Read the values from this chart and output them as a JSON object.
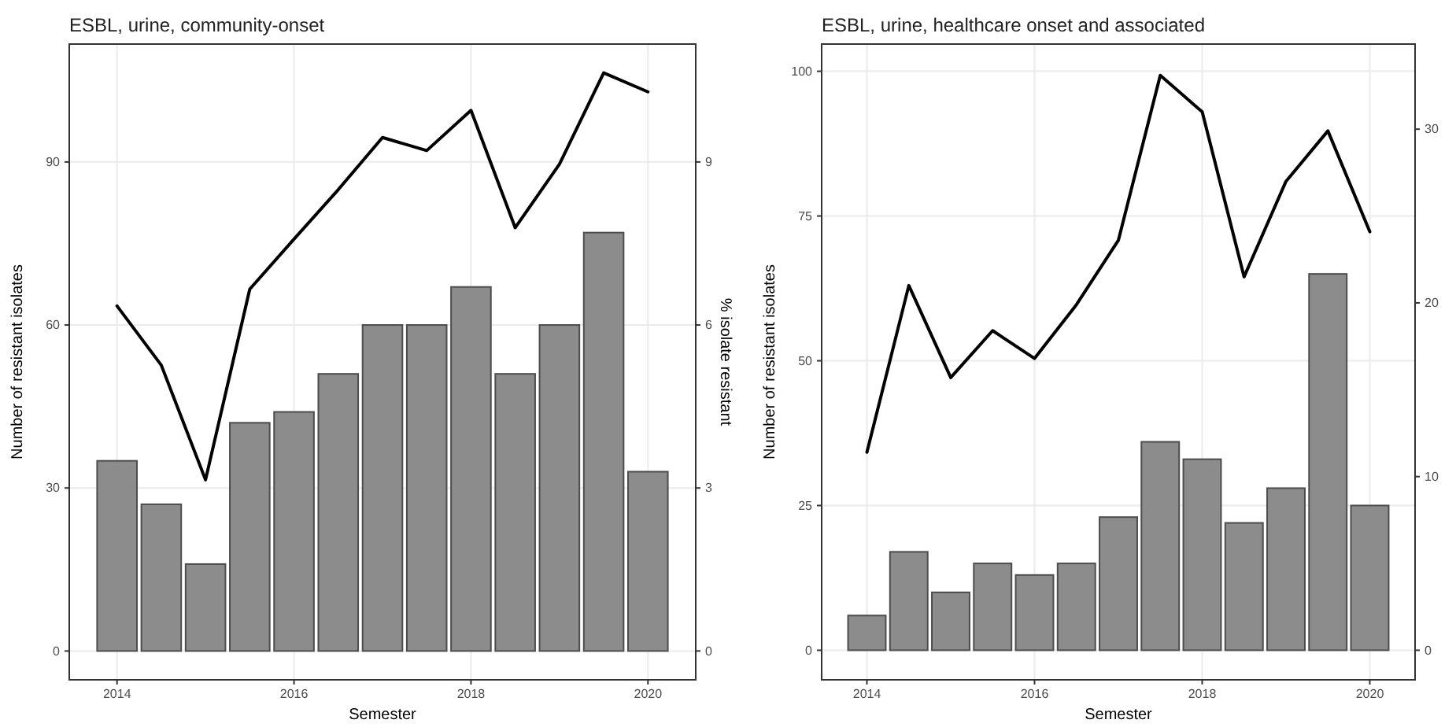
{
  "chart_data": [
    {
      "type": "bar",
      "title": "ESBL, urine, community-onset",
      "xlabel": "Semester",
      "ylabel": "Number of resistant isolates",
      "y2label": "% isolate resistant",
      "x": [
        2014,
        2014.5,
        2015,
        2015.5,
        2016,
        2016.5,
        2017,
        2017.5,
        2018,
        2018.5,
        2019,
        2019.5,
        2020
      ],
      "series": [
        {
          "color": "#8c8c8c",
          "values": [
            35,
            27,
            16,
            42,
            44,
            51,
            60,
            60,
            67,
            51,
            60,
            77,
            33
          ]
        },
        {
          "type": "line",
          "axis": "y2",
          "color": "#000000",
          "values": [
            6.35,
            5.26,
            3.15,
            6.66,
            7.58,
            8.49,
            9.45,
            9.21,
            9.95,
            7.79,
            8.96,
            10.64,
            10.29
          ]
        }
      ],
      "xlim": [
        2013.46,
        2020.54
      ],
      "xticks": [
        2014,
        2016,
        2018,
        2020
      ],
      "ylim": [
        -5.3,
        111.7
      ],
      "yticks": [
        0,
        30,
        60,
        90
      ],
      "y2lim": [
        -0.53,
        11.17
      ],
      "y2ticks": [
        0,
        3,
        6,
        9
      ],
      "grid": true
    },
    {
      "type": "bar",
      "title": "ESBL, urine, healthcare onset and associated",
      "xlabel": "Semester",
      "ylabel": "Number of resistant isolates",
      "x": [
        2014,
        2014.5,
        2015,
        2015.5,
        2016,
        2016.5,
        2017,
        2017.5,
        2018,
        2018.5,
        2019,
        2019.5,
        2020
      ],
      "series": [
        {
          "color": "#8c8c8c",
          "values": [
            6,
            17,
            10,
            15,
            13,
            15,
            23,
            36,
            33,
            22,
            28,
            65,
            25
          ]
        },
        {
          "type": "line",
          "axis": "y2",
          "color": "#000000",
          "values": [
            11.4,
            21.0,
            15.7,
            18.4,
            16.8,
            19.9,
            23.6,
            33.1,
            31.0,
            21.5,
            27.0,
            29.9,
            24.1
          ]
        }
      ],
      "xlim": [
        2013.46,
        2020.54
      ],
      "xticks": [
        2014,
        2016,
        2018,
        2020
      ],
      "ylim": [
        -5.1,
        104.7
      ],
      "yticks": [
        0,
        25,
        50,
        75,
        100
      ],
      "y2lim": [
        -1.7,
        34.9
      ],
      "y2ticks": [
        0,
        10,
        20,
        30
      ],
      "grid": true
    }
  ]
}
